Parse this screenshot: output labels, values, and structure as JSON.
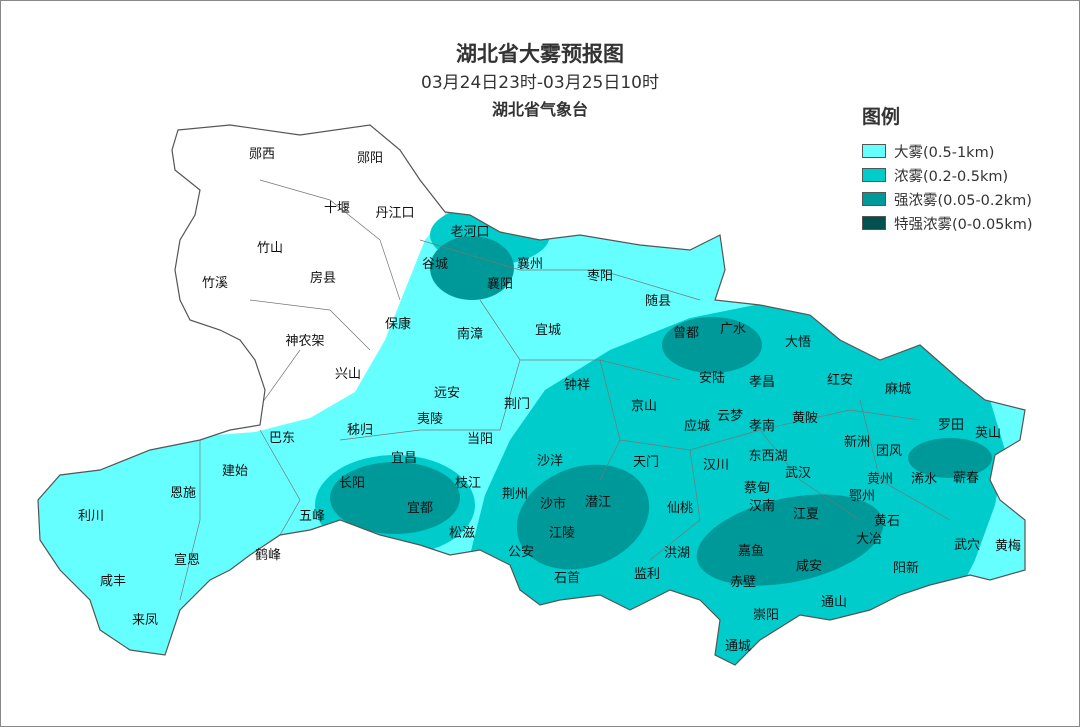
{
  "header": {
    "title": "湖北省大雾预报图",
    "time_range": "03月24日23时-03月25日10时",
    "issuer": "湖北省气象台"
  },
  "legend": {
    "title": "图例",
    "items": [
      {
        "label": "大雾(0.5-1km)",
        "color": "#66ffff"
      },
      {
        "label": "浓雾(0.2-0.5km)",
        "color": "#00cccc"
      },
      {
        "label": "强浓雾(0.05-0.2km)",
        "color": "#009999"
      },
      {
        "label": "特强浓雾(0-0.05km)",
        "color": "#005050"
      }
    ]
  },
  "map": {
    "no_fog_color": "#ffffff",
    "places": [
      "郧西",
      "郧阳",
      "十堰",
      "丹江口",
      "竹山",
      "房县",
      "竹溪",
      "神农架",
      "保康",
      "兴山",
      "老河口",
      "谷城",
      "襄州",
      "襄阳",
      "枣阳",
      "南漳",
      "宜城",
      "随县",
      "曾都",
      "广水",
      "大悟",
      "安陆",
      "孝昌",
      "红安",
      "麻城",
      "远安",
      "荆门",
      "钟祥",
      "京山",
      "应城",
      "云梦",
      "孝南",
      "黄陂",
      "新洲",
      "罗田",
      "英山",
      "巴东",
      "秭归",
      "夷陵",
      "当阳",
      "团风",
      "浠水",
      "宜昌",
      "长阳",
      "宜都",
      "枝江",
      "沙洋",
      "天门",
      "汉川",
      "东西湖",
      "武汉",
      "黄州",
      "鄂州",
      "蕲春",
      "建始",
      "恩施",
      "利川",
      "五峰",
      "荆州",
      "沙市",
      "潜江",
      "仙桃",
      "蔡甸",
      "汉南",
      "江夏",
      "黄石",
      "大冶",
      "武穴",
      "黄梅",
      "宣恩",
      "鹤峰",
      "松滋",
      "公安",
      "江陵",
      "洪湖",
      "嘉鱼",
      "咸安",
      "阳新",
      "咸丰",
      "石首",
      "监利",
      "赤壁",
      "崇阳",
      "通山",
      "来凤",
      "通城"
    ]
  }
}
